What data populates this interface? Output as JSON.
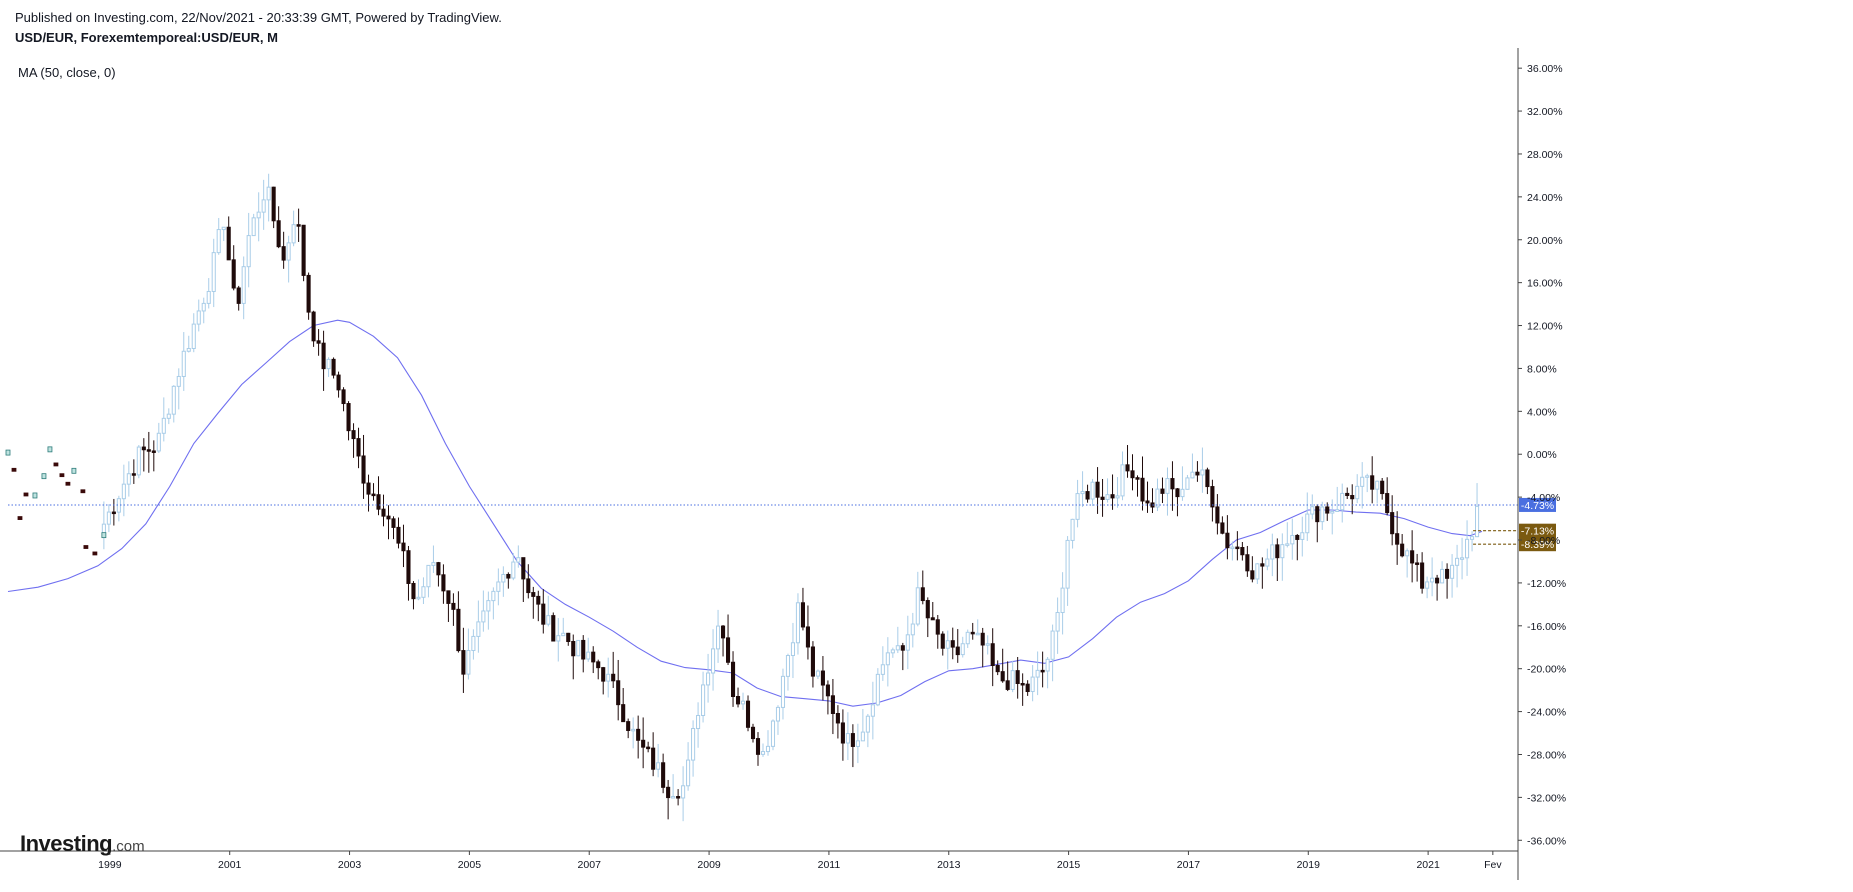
{
  "header": {
    "published": "Published on Investing.com, 22/Nov/2021 - 20:33:39 GMT, Powered by TradingView.",
    "symbol": "USD/EUR, Forexemtemporeal:USD/EUR, M"
  },
  "indicator_label": "MA (50, close, 0)",
  "logo": {
    "word": "Investing",
    "suffix": ".com"
  },
  "colors": {
    "up_candle": "#a9cde8",
    "down_candle": "#1f0a0a",
    "ma_line": "#6f6ff0",
    "price_line": "#4a6fe0",
    "highlight_label": "#7b5a10",
    "axis": "#444444"
  },
  "chart_data": {
    "type": "candlestick",
    "y_unit": "%",
    "ylim": [
      -37,
      39
    ],
    "xlim": [
      1997.3,
      2022.5
    ],
    "y_ticks": [
      "36.00%",
      "32.00%",
      "28.00%",
      "24.00%",
      "20.00%",
      "16.00%",
      "12.00%",
      "8.00%",
      "4.00%",
      "0.00%",
      "-4.00%",
      "-8.00%",
      "-12.00%",
      "-16.00%",
      "-20.00%",
      "-24.00%",
      "-28.00%",
      "-32.00%",
      "-36.00%"
    ],
    "y_tick_values": [
      36,
      32,
      28,
      24,
      20,
      16,
      12,
      8,
      4,
      0,
      -4,
      -8,
      -12,
      -16,
      -20,
      -24,
      -28,
      -32,
      -36
    ],
    "x_ticks": [
      "1999",
      "2001",
      "2003",
      "2005",
      "2007",
      "2009",
      "2011",
      "2013",
      "2015",
      "2017",
      "2019",
      "2021",
      "Fev"
    ],
    "x_tick_values": [
      1999,
      2001,
      2003,
      2005,
      2007,
      2009,
      2011,
      2013,
      2015,
      2017,
      2019,
      2021,
      2022.08
    ],
    "close_path": [
      [
        1998.9,
        -6.5
      ],
      [
        1999.2,
        -3
      ],
      [
        1999.5,
        0
      ],
      [
        1999.8,
        1
      ],
      [
        2000.1,
        7
      ],
      [
        2000.4,
        12
      ],
      [
        2000.7,
        17
      ],
      [
        2000.9,
        22
      ],
      [
        2001.1,
        13
      ],
      [
        2001.3,
        20
      ],
      [
        2001.6,
        25
      ],
      [
        2001.9,
        18
      ],
      [
        2002.1,
        23
      ],
      [
        2002.3,
        14
      ],
      [
        2002.5,
        9
      ],
      [
        2002.8,
        7
      ],
      [
        2003.0,
        2
      ],
      [
        2003.3,
        -3
      ],
      [
        2003.6,
        -5
      ],
      [
        2003.9,
        -10
      ],
      [
        2004.1,
        -14
      ],
      [
        2004.4,
        -10
      ],
      [
        2004.7,
        -14
      ],
      [
        2004.9,
        -20
      ],
      [
        2005.2,
        -16
      ],
      [
        2005.5,
        -12
      ],
      [
        2005.8,
        -9
      ],
      [
        2006.0,
        -13
      ],
      [
        2006.3,
        -16
      ],
      [
        2006.6,
        -17
      ],
      [
        2006.9,
        -19
      ],
      [
        2007.2,
        -20
      ],
      [
        2007.5,
        -23
      ],
      [
        2007.8,
        -27
      ],
      [
        2008.1,
        -29
      ],
      [
        2008.3,
        -31
      ],
      [
        2008.6,
        -31
      ],
      [
        2008.8,
        -24
      ],
      [
        2009.0,
        -19
      ],
      [
        2009.2,
        -15
      ],
      [
        2009.4,
        -22
      ],
      [
        2009.6,
        -24
      ],
      [
        2009.9,
        -28
      ],
      [
        2010.1,
        -24
      ],
      [
        2010.3,
        -19
      ],
      [
        2010.5,
        -14
      ],
      [
        2010.7,
        -20
      ],
      [
        2010.9,
        -22
      ],
      [
        2011.1,
        -24
      ],
      [
        2011.3,
        -27
      ],
      [
        2011.6,
        -25
      ],
      [
        2011.8,
        -21
      ],
      [
        2012.0,
        -18
      ],
      [
        2012.2,
        -19
      ],
      [
        2012.5,
        -13
      ],
      [
        2012.7,
        -16
      ],
      [
        2012.9,
        -18
      ],
      [
        2013.1,
        -19
      ],
      [
        2013.3,
        -17
      ],
      [
        2013.6,
        -18
      ],
      [
        2013.8,
        -21
      ],
      [
        2014.0,
        -21
      ],
      [
        2014.3,
        -22
      ],
      [
        2014.6,
        -20
      ],
      [
        2014.8,
        -16
      ],
      [
        2015.0,
        -7
      ],
      [
        2015.2,
        -4
      ],
      [
        2015.4,
        -3
      ],
      [
        2015.7,
        -4
      ],
      [
        2015.9,
        -2
      ],
      [
        2016.1,
        -1
      ],
      [
        2016.3,
        -5
      ],
      [
        2016.6,
        -3
      ],
      [
        2016.9,
        -4
      ],
      [
        2017.0,
        -1
      ],
      [
        2017.2,
        -2
      ],
      [
        2017.4,
        -4
      ],
      [
        2017.6,
        -8
      ],
      [
        2017.9,
        -9
      ],
      [
        2018.1,
        -11
      ],
      [
        2018.3,
        -10
      ],
      [
        2018.6,
        -8
      ],
      [
        2018.8,
        -7
      ],
      [
        2019.0,
        -6
      ],
      [
        2019.2,
        -5
      ],
      [
        2019.4,
        -5
      ],
      [
        2019.6,
        -4
      ],
      [
        2019.9,
        -3
      ],
      [
        2020.1,
        -3
      ],
      [
        2020.3,
        -5
      ],
      [
        2020.5,
        -8
      ],
      [
        2020.7,
        -10
      ],
      [
        2020.9,
        -12
      ],
      [
        2021.1,
        -11
      ],
      [
        2021.3,
        -12
      ],
      [
        2021.5,
        -10
      ],
      [
        2021.7,
        -7.5
      ],
      [
        2021.85,
        -4.7
      ]
    ],
    "early_points": [
      [
        1997.3,
        0.2,
        "up"
      ],
      [
        1997.4,
        -1.5,
        "down"
      ],
      [
        1997.6,
        -3.8,
        "down"
      ],
      [
        1997.75,
        -3.8,
        "up"
      ],
      [
        1997.9,
        -2,
        "up"
      ],
      [
        1998.0,
        0.5,
        "up"
      ],
      [
        1998.1,
        -1,
        "down"
      ],
      [
        1998.2,
        -2,
        "down"
      ],
      [
        1998.3,
        -2.8,
        "down"
      ],
      [
        1998.4,
        -1.5,
        "up"
      ],
      [
        1998.55,
        -3.5,
        "down"
      ],
      [
        1998.6,
        -8.7,
        "down"
      ],
      [
        1997.5,
        -6,
        "down"
      ],
      [
        1998.75,
        -9.3,
        "down"
      ],
      [
        1998.9,
        -7.5,
        "up"
      ]
    ],
    "ma_path": [
      [
        1997.3,
        -12.8
      ],
      [
        1997.8,
        -12.4
      ],
      [
        1998.3,
        -11.6
      ],
      [
        1998.8,
        -10.4
      ],
      [
        1999.2,
        -8.8
      ],
      [
        1999.6,
        -6.5
      ],
      [
        2000.0,
        -3
      ],
      [
        2000.4,
        1
      ],
      [
        2000.8,
        3.8
      ],
      [
        2001.2,
        6.5
      ],
      [
        2001.6,
        8.5
      ],
      [
        2002.0,
        10.5
      ],
      [
        2002.4,
        12
      ],
      [
        2002.8,
        12.5
      ],
      [
        2003.0,
        12.3
      ],
      [
        2003.4,
        11
      ],
      [
        2003.8,
        9
      ],
      [
        2004.2,
        5.5
      ],
      [
        2004.6,
        1
      ],
      [
        2005.0,
        -3
      ],
      [
        2005.4,
        -6.5
      ],
      [
        2005.8,
        -10
      ],
      [
        2006.2,
        -12.5
      ],
      [
        2006.6,
        -14
      ],
      [
        2007.0,
        -15.2
      ],
      [
        2007.4,
        -16.5
      ],
      [
        2007.8,
        -18
      ],
      [
        2008.2,
        -19.3
      ],
      [
        2008.6,
        -19.9
      ],
      [
        2009.0,
        -20.1
      ],
      [
        2009.4,
        -20.4
      ],
      [
        2009.8,
        -21.8
      ],
      [
        2010.2,
        -22.6
      ],
      [
        2010.6,
        -22.8
      ],
      [
        2011.0,
        -23
      ],
      [
        2011.4,
        -23.5
      ],
      [
        2011.8,
        -23.2
      ],
      [
        2012.2,
        -22.5
      ],
      [
        2012.6,
        -21.2
      ],
      [
        2013.0,
        -20.2
      ],
      [
        2013.4,
        -20
      ],
      [
        2013.8,
        -19.6
      ],
      [
        2014.2,
        -19.2
      ],
      [
        2014.6,
        -19.5
      ],
      [
        2015.0,
        -18.9
      ],
      [
        2015.4,
        -17.2
      ],
      [
        2015.8,
        -15.2
      ],
      [
        2016.2,
        -13.8
      ],
      [
        2016.6,
        -13
      ],
      [
        2017.0,
        -11.8
      ],
      [
        2017.4,
        -9.8
      ],
      [
        2017.8,
        -8
      ],
      [
        2018.2,
        -7.3
      ],
      [
        2018.6,
        -6.2
      ],
      [
        2019.0,
        -5.2
      ],
      [
        2019.4,
        -5.2
      ],
      [
        2019.8,
        -5.4
      ],
      [
        2020.2,
        -5.5
      ],
      [
        2020.6,
        -6
      ],
      [
        2021.0,
        -6.8
      ],
      [
        2021.4,
        -7.4
      ],
      [
        2021.7,
        -7.6
      ],
      [
        2021.9,
        -7.2
      ]
    ],
    "price_line": {
      "value": -4.73,
      "label": "-4.73%"
    },
    "highlight_levels": [
      {
        "value": -7.13,
        "label": "-7.13%"
      },
      {
        "value": -8.39,
        "label": "-8.39%"
      }
    ]
  }
}
